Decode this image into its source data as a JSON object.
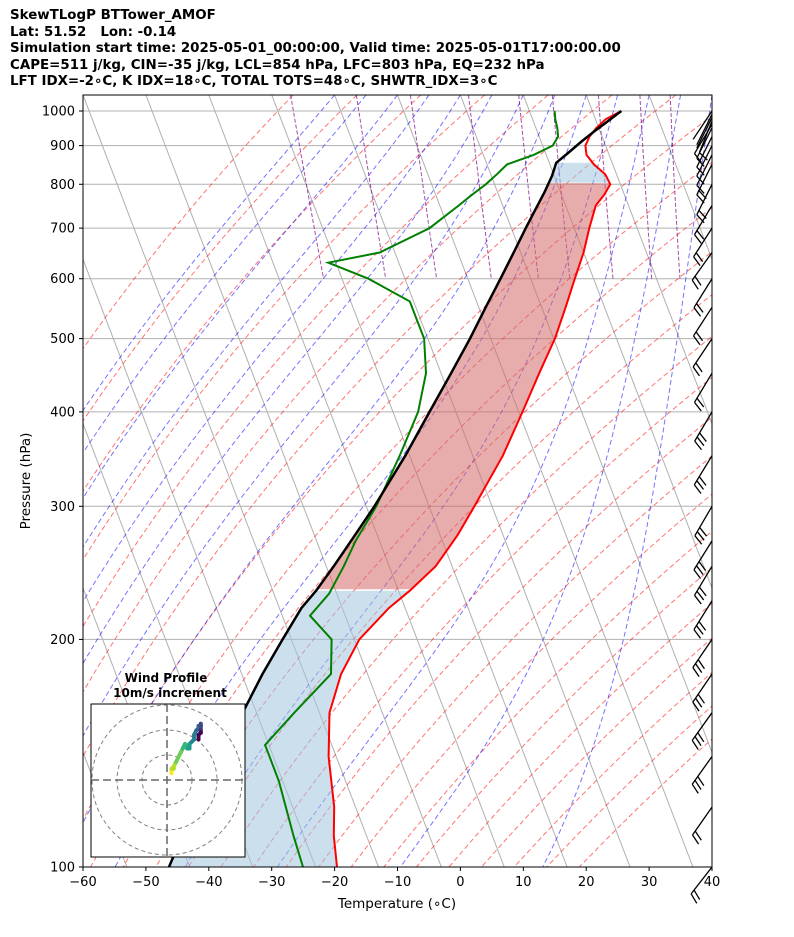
{
  "header": {
    "line1": "SkewTLogP BTTower_AMOF",
    "line2": "Lat: 51.52   Lon: -0.14",
    "line3": "Simulation start time: 2025-05-01_00:00:00, Valid time: 2025-05-01T17:00:00.00",
    "line4": "CAPE=511 j/kg, CIN=-35 j/kg, LCL=854 hPa, LFC=803 hPa, EQ=232 hPa",
    "line5": "LFT IDX=-2∘C, K IDX=18∘C, TOTAL TOTS=48∘C, SHWTR_IDX=3∘C"
  },
  "chart_data": {
    "type": "skew-t",
    "xlabel": "Temperature (∘C)",
    "ylabel": "Pressure (hPa)",
    "xlim": [
      -60,
      40
    ],
    "ylim": [
      1050,
      100
    ],
    "log_pressure": true,
    "skew_deg_per_decade": 46,
    "x_ticks": [
      "−60",
      "−50",
      "−40",
      "−30",
      "−20",
      "−10",
      "0",
      "10",
      "20",
      "30",
      "40"
    ],
    "y_ticks": [
      "1000",
      "900",
      "800",
      "700",
      "600",
      "500",
      "400",
      "300",
      "200",
      "100"
    ],
    "grid": true,
    "dry_adiabats_color": "#ff0000",
    "moist_adiabats_color": "#0000ff",
    "mixing_lines_color": "#800080",
    "series": [
      {
        "kind": "temperature",
        "color": "#ff0000",
        "points": [
          [
            1000,
            24.6
          ],
          [
            975,
            21.6
          ],
          [
            950,
            19.6
          ],
          [
            925,
            18.0
          ],
          [
            900,
            16.8
          ],
          [
            875,
            16.4
          ],
          [
            850,
            17.0
          ],
          [
            825,
            18.2
          ],
          [
            800,
            18.4
          ],
          [
            775,
            16.8
          ],
          [
            750,
            14.8
          ],
          [
            700,
            12.4
          ],
          [
            650,
            10.0
          ],
          [
            600,
            7.0
          ],
          [
            550,
            3.8
          ],
          [
            500,
            0.2
          ],
          [
            450,
            -4.4
          ],
          [
            400,
            -9.4
          ],
          [
            350,
            -15.2
          ],
          [
            300,
            -22.8
          ],
          [
            275,
            -27.2
          ],
          [
            250,
            -32.6
          ],
          [
            232,
            -38.2
          ],
          [
            220,
            -42.6
          ],
          [
            200,
            -49.2
          ],
          [
            180,
            -54.2
          ],
          [
            160,
            -58.4
          ],
          [
            140,
            -61.2
          ],
          [
            120,
            -63.4
          ],
          [
            110,
            -65.2
          ],
          [
            100,
            -66.6
          ]
        ]
      },
      {
        "kind": "dewpoint",
        "color": "#008000",
        "points": [
          [
            1000,
            14.0
          ],
          [
            975,
            13.6
          ],
          [
            950,
            13.4
          ],
          [
            925,
            13.0
          ],
          [
            900,
            11.6
          ],
          [
            875,
            8.0
          ],
          [
            850,
            3.2
          ],
          [
            825,
            1.0
          ],
          [
            800,
            -1.4
          ],
          [
            775,
            -4.2
          ],
          [
            750,
            -7.0
          ],
          [
            700,
            -13.0
          ],
          [
            650,
            -22.4
          ],
          [
            630,
            -31.2
          ],
          [
            600,
            -25.8
          ],
          [
            560,
            -20.6
          ],
          [
            500,
            -20.6
          ],
          [
            450,
            -22.4
          ],
          [
            400,
            -26.0
          ],
          [
            350,
            -31.6
          ],
          [
            300,
            -38.4
          ],
          [
            270,
            -43.8
          ],
          [
            250,
            -47.2
          ],
          [
            230,
            -51.2
          ],
          [
            215,
            -55.6
          ],
          [
            200,
            -53.6
          ],
          [
            180,
            -55.8
          ],
          [
            160,
            -64.0
          ],
          [
            145,
            -70.6
          ],
          [
            130,
            -70.6
          ],
          [
            110,
            -71.6
          ],
          [
            100,
            -72.0
          ]
        ]
      },
      {
        "kind": "parcel",
        "color": "#000000",
        "points": [
          [
            1000,
            24.6
          ],
          [
            970,
            21.9
          ],
          [
            940,
            19.1
          ],
          [
            910,
            16.3
          ],
          [
            880,
            13.6
          ],
          [
            854,
            11.1
          ],
          [
            820,
            9.6
          ],
          [
            780,
            7.4
          ],
          [
            740,
            4.9
          ],
          [
            700,
            2.3
          ],
          [
            650,
            -1.1
          ],
          [
            600,
            -4.8
          ],
          [
            550,
            -8.9
          ],
          [
            500,
            -13.3
          ],
          [
            450,
            -18.4
          ],
          [
            400,
            -24.2
          ],
          [
            350,
            -30.7
          ],
          [
            300,
            -38.7
          ],
          [
            275,
            -43.5
          ],
          [
            250,
            -48.8
          ],
          [
            232,
            -53.1
          ],
          [
            220,
            -56.5
          ],
          [
            200,
            -61.4
          ],
          [
            180,
            -66.7
          ],
          [
            160,
            -72.2
          ],
          [
            140,
            -78.4
          ],
          [
            120,
            -85.5
          ],
          [
            110,
            -89.3
          ],
          [
            100,
            -93.3
          ]
        ]
      }
    ],
    "cape_fill_color": "#d46a6a",
    "cin_fill_color": "#a3c4df",
    "wind_barbs": [
      [
        1000,
        2,
        3
      ],
      [
        990,
        2,
        4
      ],
      [
        980,
        2,
        4
      ],
      [
        970,
        2,
        5
      ],
      [
        960,
        3,
        5
      ],
      [
        950,
        3,
        6
      ],
      [
        925,
        4,
        8
      ],
      [
        900,
        5,
        10
      ],
      [
        875,
        6,
        12
      ],
      [
        850,
        7,
        14
      ],
      [
        800,
        8,
        16
      ],
      [
        750,
        9,
        15
      ],
      [
        700,
        9,
        14
      ],
      [
        650,
        10,
        14
      ],
      [
        600,
        10,
        16
      ],
      [
        550,
        11,
        17
      ],
      [
        500,
        12,
        18
      ],
      [
        450,
        12,
        20
      ],
      [
        400,
        13,
        22
      ],
      [
        350,
        14,
        23
      ],
      [
        300,
        14,
        24
      ],
      [
        270,
        15,
        24
      ],
      [
        250,
        15,
        25
      ],
      [
        225,
        15,
        24
      ],
      [
        200,
        15,
        22
      ],
      [
        180,
        15,
        22
      ],
      [
        160,
        15,
        21
      ],
      [
        140,
        15,
        21
      ],
      [
        120,
        14,
        20
      ],
      [
        100,
        14,
        18
      ]
    ],
    "inset": {
      "title_line1": "Wind Profile",
      "title_line2": "10m/s increment",
      "rings": [
        10,
        20,
        30
      ]
    }
  }
}
